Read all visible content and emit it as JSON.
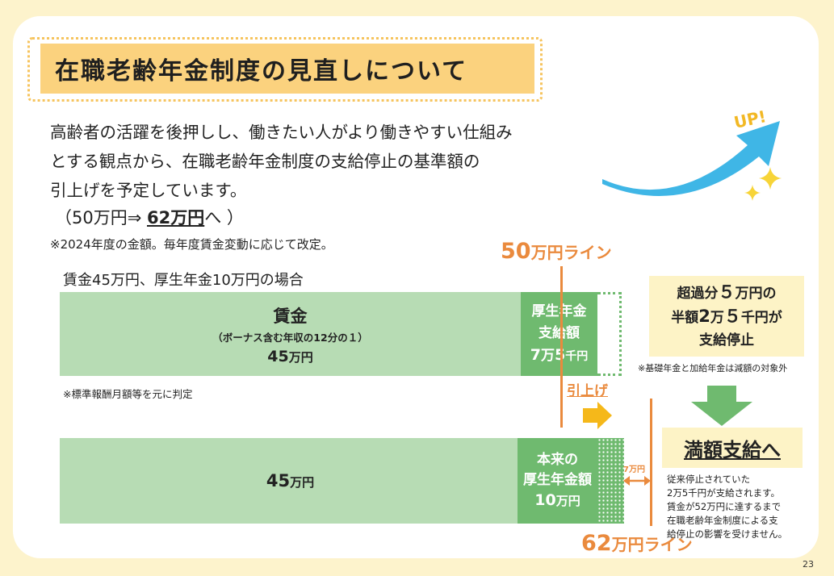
{
  "title": "在職老齢年金制度の見直しについて",
  "intro": {
    "line1": "高齢者の活躍を後押しし、働きたい人がより働きやすい仕組み",
    "line2": "とする観点から、在職老齢年金制度の支給停止の基準額の",
    "line3": "引上げを予定しています。"
  },
  "amount": {
    "prefix": "（50万円⇒ ",
    "new_value": "62万円",
    "suffix": "へ ）"
  },
  "note_year": "※2024年度の金額。毎年度賃金変動に応じて改定。",
  "case_label": "賃金45万円、厚生年金10万円の場合",
  "top_bar": {
    "wage_title": "賃金",
    "wage_sub": "（ボーナス含む年収の12分の１）",
    "wage_amount_num": "45",
    "wage_amount_unit": "万円",
    "pension_line1": "厚生年金",
    "pension_line2": "支給額",
    "pension_num1": "7",
    "pension_unit1": "万",
    "pension_num2": "5",
    "pension_unit2": "千円"
  },
  "note_standard": "※標準報酬月額等を元に判定",
  "bottom_bar": {
    "wage_num": "45",
    "wage_unit": "万円",
    "pension_line1": "本来の",
    "pension_line2": "厚生年金額",
    "pension_num": "10",
    "pension_unit": "万円"
  },
  "line50": {
    "num": "50",
    "unit": "万円ライン"
  },
  "line62": {
    "num": "62",
    "unit": "万円ライン"
  },
  "hikiage": "引上げ",
  "seven_man": "7万円",
  "exceed": {
    "l1a": "超過分",
    "l1num": "５",
    "l1b": "万円の",
    "l2a": "半額",
    "l2num1": "2",
    "l2b": "万",
    "l2num2": "５",
    "l2c": "千円が",
    "l3": "支給停止"
  },
  "note_basic": "※基礎年金と加給年金は減額の対象外",
  "full_payment": "満額支給へ",
  "full_text": [
    "従来停止されていた",
    "2万5千円が支給されます。",
    "賃金が52万円に達するまで",
    "在職老齢年金制度による支",
    "給停止の影響を受けません。"
  ],
  "up_label": "UP!",
  "page_number": "23",
  "colors": {
    "background": "#fdf3cc",
    "title_bg": "#fbd27e",
    "orange": "#ea8a3d",
    "green_light": "#b7dcb4",
    "green_dark": "#6fba6f",
    "arrow_blue": "#3fb6e6"
  }
}
